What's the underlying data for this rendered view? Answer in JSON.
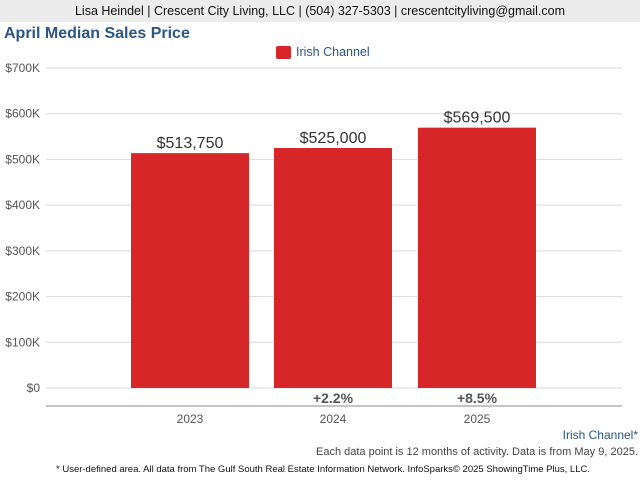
{
  "header": {
    "contact": "Lisa Heindel | Crescent City Living, LLC | (504) 327-5303 | crescentcityliving@gmail.com"
  },
  "colors": {
    "bar": "#d62628",
    "title": "#2a5586",
    "grid": "#d9d9d9",
    "axis": "#888888"
  },
  "chart_data": {
    "type": "bar",
    "title": "April Median Sales Price",
    "categories": [
      "2023",
      "2024",
      "2025"
    ],
    "series": [
      {
        "name": "Irish Channel",
        "values": [
          513750,
          525000,
          569500
        ]
      }
    ],
    "data_labels": [
      "$513,750",
      "$525,000",
      "$569,500"
    ],
    "change_labels": [
      "",
      "+2.2%",
      "+8.5%"
    ],
    "y_ticks": [
      0,
      100000,
      200000,
      300000,
      400000,
      500000,
      600000,
      700000
    ],
    "y_tick_labels": [
      "$0",
      "$100K",
      "$200K",
      "$300K",
      "$400K",
      "$500K",
      "$600K",
      "$700K"
    ],
    "ylim": [
      0,
      700000
    ],
    "xlabel": "",
    "ylabel": "",
    "grid": true,
    "legend_position": "top-center"
  },
  "footer": {
    "region": "Irish Channel*",
    "data_note": "Each data point is 12 months of activity. Data is from May 9, 2025.",
    "source": "* User-defined area. All data from The Gulf South Real Estate Information Network. InfoSparks© 2025 ShowingTime Plus, LLC."
  }
}
